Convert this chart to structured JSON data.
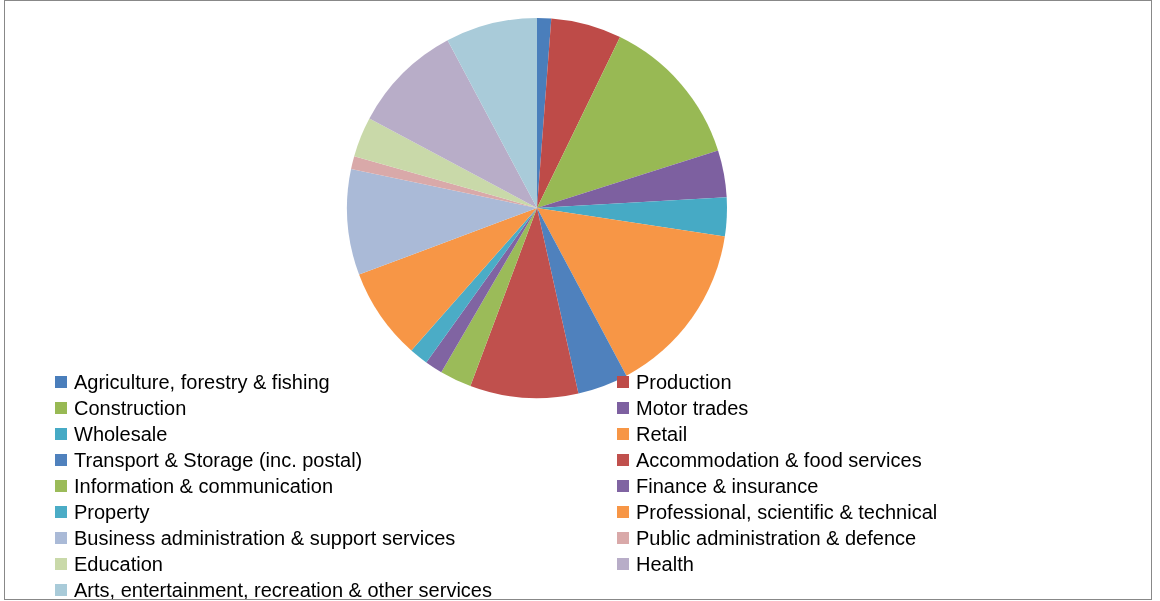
{
  "chart_data": {
    "type": "pie",
    "categories": [
      "Agriculture, forestry & fishing",
      "Production",
      "Construction",
      "Motor trades",
      "Wholesale",
      "Retail",
      "Transport & Storage (inc. postal)",
      "Accommodation & food services",
      "Information & communication",
      "Finance & insurance",
      "Property",
      "Professional, scientific & technical",
      "Business administration & support services",
      "Public administration & defence",
      "Education",
      "Health",
      "Arts, entertainment, recreation & other services"
    ],
    "values": [
      1.2,
      6,
      12.9,
      4,
      3.3,
      14.8,
      4.3,
      9.2,
      2.7,
      1.5,
      1.6,
      7.8,
      9,
      1.1,
      3.4,
      9.4,
      7.8
    ],
    "colors": [
      "#4a7ebb",
      "#be4b48",
      "#98b954",
      "#7d60a0",
      "#46aac5",
      "#f79646",
      "#4f81bd",
      "#c0504d",
      "#9bbb59",
      "#8064a2",
      "#4bacc6",
      "#f79646",
      "#aabad7",
      "#d9a9a9",
      "#c9d9a9",
      "#b8adc8",
      "#a9cbd9"
    ],
    "legend": "bottom"
  }
}
